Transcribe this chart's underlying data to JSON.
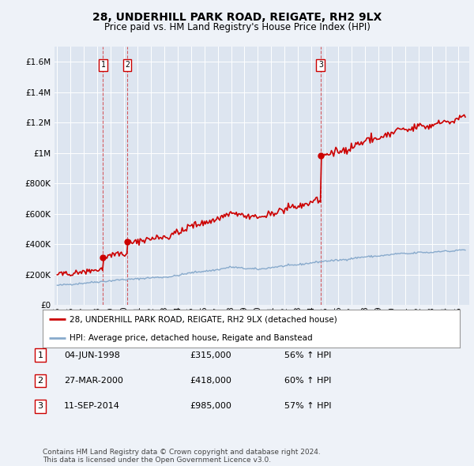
{
  "title": "28, UNDERHILL PARK ROAD, REIGATE, RH2 9LX",
  "subtitle": "Price paid vs. HM Land Registry's House Price Index (HPI)",
  "ylabel_ticks": [
    "£0",
    "£200K",
    "£400K",
    "£600K",
    "£800K",
    "£1M",
    "£1.2M",
    "£1.4M",
    "£1.6M"
  ],
  "ytick_values": [
    0,
    200000,
    400000,
    600000,
    800000,
    1000000,
    1200000,
    1400000,
    1600000
  ],
  "ylim": [
    0,
    1700000
  ],
  "xlim_start": 1994.8,
  "xlim_end": 2025.8,
  "background_color": "#eef2f8",
  "plot_bg_color": "#dde5f0",
  "grid_color": "#ffffff",
  "purchases": [
    {
      "date_num": 1998.42,
      "price": 315000,
      "label": "1"
    },
    {
      "date_num": 2000.23,
      "price": 418000,
      "label": "2"
    },
    {
      "date_num": 2014.69,
      "price": 985000,
      "label": "3"
    }
  ],
  "vline_dates": [
    1998.42,
    2000.23,
    2014.69
  ],
  "legend_label_red": "28, UNDERHILL PARK ROAD, REIGATE, RH2 9LX (detached house)",
  "legend_label_blue": "HPI: Average price, detached house, Reigate and Banstead",
  "table_rows": [
    {
      "num": "1",
      "date": "04-JUN-1998",
      "price": "£315,000",
      "pct": "56% ↑ HPI"
    },
    {
      "num": "2",
      "date": "27-MAR-2000",
      "price": "£418,000",
      "pct": "60% ↑ HPI"
    },
    {
      "num": "3",
      "date": "11-SEP-2014",
      "price": "£985,000",
      "pct": "57% ↑ HPI"
    }
  ],
  "footer": "Contains HM Land Registry data © Crown copyright and database right 2024.\nThis data is licensed under the Open Government Licence v3.0.",
  "red_color": "#cc0000",
  "blue_color": "#88aacc",
  "vline_color": "#cc0000"
}
